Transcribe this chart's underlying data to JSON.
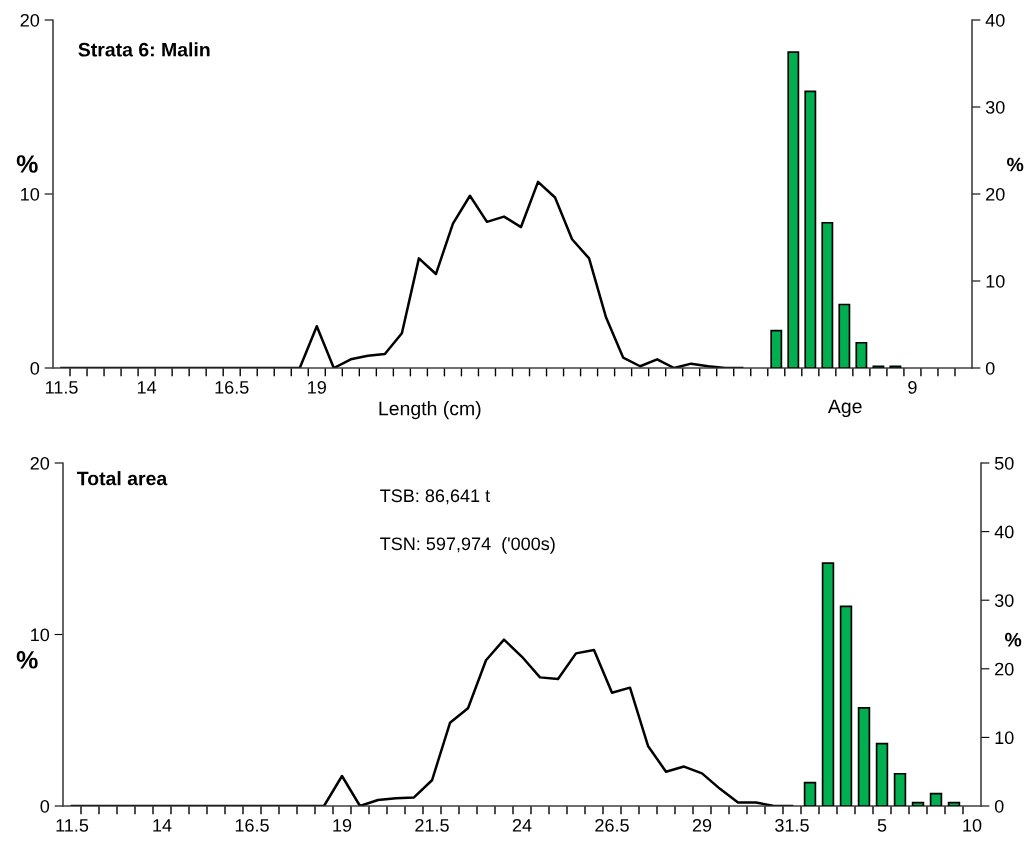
{
  "chart_data": [
    {
      "type": "line",
      "title": "Strata 6: Malin",
      "xlabel": "Length (cm)",
      "ylabel": "%",
      "y2label": "%",
      "categories": [
        "11.5",
        null,
        null,
        null,
        null,
        "14",
        null,
        null,
        null,
        null,
        "16.5",
        null,
        null,
        null,
        null,
        "19",
        null,
        null,
        null,
        null,
        null,
        null,
        null,
        null,
        null,
        null,
        null,
        null,
        null,
        null,
        null,
        null,
        null,
        null,
        null,
        null,
        null,
        null,
        null,
        null,
        null,
        null,
        null,
        null,
        null,
        null,
        null,
        null,
        null,
        null,
        "9",
        null,
        null,
        null
      ],
      "series": [
        {
          "color": "#000000",
          "values": [
            0,
            0,
            0,
            0,
            0,
            0,
            0,
            0,
            0,
            0,
            0,
            0,
            0,
            0,
            0,
            2.4,
            0,
            0.5,
            0.7,
            0.8,
            2.0,
            6.3,
            5.4,
            8.3,
            9.9,
            8.4,
            8.7,
            8.1,
            10.7,
            9.8,
            7.4,
            6.3,
            2.9,
            0.6,
            0.1,
            0.5,
            0,
            0.25,
            0.1,
            0,
            0,
            null,
            null,
            null,
            null,
            null,
            null,
            null,
            null,
            null,
            null,
            null,
            null,
            null
          ]
        },
        {
          "type": "bar",
          "axis": "y2",
          "color": "#00b050",
          "values": [
            null,
            null,
            null,
            null,
            null,
            null,
            null,
            null,
            null,
            null,
            null,
            null,
            null,
            null,
            null,
            null,
            null,
            null,
            null,
            null,
            null,
            null,
            null,
            null,
            null,
            null,
            null,
            null,
            null,
            null,
            null,
            null,
            null,
            null,
            null,
            null,
            null,
            null,
            null,
            null,
            null,
            null,
            4.3,
            36.3,
            31.8,
            16.7,
            7.3,
            2.9,
            0.2,
            0.2,
            null,
            null,
            null,
            null
          ]
        }
      ],
      "ylim": [
        0,
        20
      ],
      "yticks": [
        0,
        10,
        20
      ],
      "y2lim": [
        0,
        40
      ],
      "y2ticks": [
        0,
        10,
        20,
        30,
        40
      ],
      "annotations": [
        "Age"
      ],
      "legend": false,
      "grid": false
    },
    {
      "type": "line",
      "title": "Total area",
      "ylabel": "%",
      "y2label": "%",
      "categories": [
        "11.5",
        null,
        null,
        null,
        null,
        "14",
        null,
        null,
        null,
        null,
        "16.5",
        null,
        null,
        null,
        null,
        "19",
        null,
        null,
        null,
        null,
        "21.5",
        null,
        null,
        null,
        null,
        "24",
        null,
        null,
        null,
        null,
        "26.5",
        null,
        null,
        null,
        null,
        "29",
        null,
        null,
        null,
        null,
        "31.5",
        null,
        null,
        null,
        null,
        "5",
        null,
        null,
        null,
        null,
        "10"
      ],
      "series": [
        {
          "color": "#000000",
          "values": [
            0,
            0,
            0,
            0,
            0,
            0,
            0,
            0,
            0,
            0,
            0,
            0,
            0,
            0,
            0,
            1.75,
            0,
            0.35,
            0.45,
            0.5,
            1.5,
            4.85,
            5.7,
            8.5,
            9.7,
            8.7,
            7.5,
            7.4,
            8.9,
            9.1,
            6.6,
            6.9,
            3.5,
            2.0,
            2.3,
            1.9,
            1.0,
            0.2,
            0.2,
            0,
            0,
            null,
            null,
            null,
            null,
            null,
            null,
            null,
            null,
            null,
            null
          ]
        },
        {
          "type": "bar",
          "axis": "y2",
          "color": "#00b050",
          "values": [
            null,
            null,
            null,
            null,
            null,
            null,
            null,
            null,
            null,
            null,
            null,
            null,
            null,
            null,
            null,
            null,
            null,
            null,
            null,
            null,
            null,
            null,
            null,
            null,
            null,
            null,
            null,
            null,
            null,
            null,
            null,
            null,
            null,
            null,
            null,
            null,
            null,
            null,
            null,
            null,
            null,
            3.4,
            35.4,
            29.1,
            14.3,
            9.1,
            4.7,
            0.5,
            1.8,
            0.5,
            null
          ]
        }
      ],
      "ylim": [
        0,
        20
      ],
      "yticks": [
        0,
        10,
        20
      ],
      "y2lim": [
        0,
        50
      ],
      "y2ticks": [
        0,
        10,
        20,
        30,
        40,
        50
      ],
      "annotations": [
        "TSB: 86,641 t",
        "TSN: 597,974  ('000s)"
      ],
      "legend": false,
      "grid": false
    }
  ]
}
